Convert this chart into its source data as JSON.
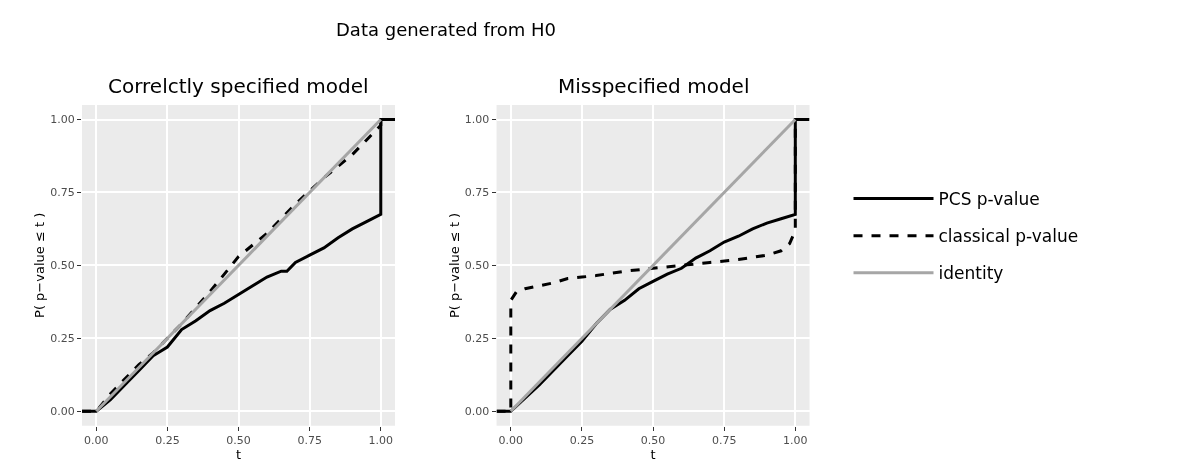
{
  "chart_data": [
    {
      "type": "line",
      "title": "Correlctly specified model",
      "annotations": [
        "Data generated from H0"
      ],
      "xlabel": "t",
      "ylabel": "P( p−value ≤ t )",
      "xlim": [
        -0.05,
        1.05
      ],
      "ylim": [
        -0.05,
        1.05
      ],
      "xticks": [
        {
          "value": 0,
          "label": "0.00"
        },
        {
          "value": 0.25,
          "label": "0.25"
        },
        {
          "value": 0.5,
          "label": "0.50"
        },
        {
          "value": 0.75,
          "label": "0.75"
        },
        {
          "value": 1,
          "label": "1.00"
        }
      ],
      "yticks": [
        {
          "value": 0,
          "label": "0.00"
        },
        {
          "value": 0.25,
          "label": "0.25"
        },
        {
          "value": 0.5,
          "label": "0.50"
        },
        {
          "value": 0.75,
          "label": "0.75"
        },
        {
          "value": 1,
          "label": "1.00"
        }
      ],
      "grid": true,
      "legend": "right",
      "marker": "none",
      "series": [
        {
          "name": "PCS p-value",
          "color": "#000000",
          "line_style": "solid",
          "x": [
            -0.05,
            0,
            0.05,
            0.1,
            0.15,
            0.2,
            0.25,
            0.3,
            0.35,
            0.4,
            0.45,
            0.5,
            0.55,
            0.6,
            0.65,
            0.67,
            0.7,
            0.75,
            0.8,
            0.85,
            0.9,
            0.95,
            1,
            1,
            1.05
          ],
          "values": [
            0,
            0,
            0.04,
            0.09,
            0.14,
            0.19,
            0.22,
            0.28,
            0.31,
            0.345,
            0.37,
            0.4,
            0.43,
            0.46,
            0.48,
            0.48,
            0.51,
            0.535,
            0.56,
            0.595,
            0.625,
            0.65,
            0.675,
            1,
            1
          ]
        },
        {
          "name": "classical p-value",
          "color": "#000000",
          "line_style": "dashed",
          "x": [
            -0.05,
            0,
            0.05,
            0.1,
            0.15,
            0.2,
            0.25,
            0.3,
            0.4,
            0.5,
            0.6,
            0.7,
            0.8,
            0.9,
            0.95,
            1,
            1,
            1.05
          ],
          "values": [
            0,
            0,
            0.06,
            0.11,
            0.16,
            0.2,
            0.25,
            0.3,
            0.41,
            0.53,
            0.61,
            0.71,
            0.8,
            0.88,
            0.93,
            0.98,
            1,
            1
          ]
        },
        {
          "name": "identity",
          "color": "#a6a6a6",
          "line_style": "solid",
          "x": [
            0,
            1
          ],
          "values": [
            0,
            1
          ]
        }
      ]
    },
    {
      "type": "line",
      "title": "Misspecified model",
      "xlabel": "t",
      "ylabel": "P( p−value ≤ t )",
      "xlim": [
        -0.05,
        1.05
      ],
      "ylim": [
        -0.05,
        1.05
      ],
      "xticks": [
        {
          "value": 0,
          "label": "0.00"
        },
        {
          "value": 0.25,
          "label": "0.25"
        },
        {
          "value": 0.5,
          "label": "0.50"
        },
        {
          "value": 0.75,
          "label": "0.75"
        },
        {
          "value": 1,
          "label": "1.00"
        }
      ],
      "yticks": [
        {
          "value": 0,
          "label": "0.00"
        },
        {
          "value": 0.25,
          "label": "0.25"
        },
        {
          "value": 0.5,
          "label": "0.50"
        },
        {
          "value": 0.75,
          "label": "0.75"
        },
        {
          "value": 1,
          "label": "1.00"
        }
      ],
      "grid": true,
      "marker": "none",
      "series": [
        {
          "color": "#000000",
          "line_style": "solid",
          "x": [
            -0.05,
            0,
            0.1,
            0.2,
            0.25,
            0.3,
            0.35,
            0.4,
            0.45,
            0.5,
            0.55,
            0.6,
            0.65,
            0.7,
            0.75,
            0.8,
            0.85,
            0.9,
            0.95,
            1,
            1,
            1.05
          ],
          "values": [
            0,
            0,
            0.09,
            0.19,
            0.24,
            0.3,
            0.35,
            0.38,
            0.42,
            0.445,
            0.47,
            0.49,
            0.525,
            0.55,
            0.58,
            0.6,
            0.625,
            0.645,
            0.66,
            0.675,
            1,
            1
          ]
        },
        {
          "color": "#000000",
          "line_style": "dashed",
          "x": [
            -0.05,
            0,
            0,
            0.02,
            0.05,
            0.1,
            0.15,
            0.2,
            0.25,
            0.3,
            0.4,
            0.5,
            0.6,
            0.65,
            0.7,
            0.8,
            0.9,
            0.95,
            0.98,
            1,
            1
          ],
          "values": [
            0,
            0,
            0.38,
            0.41,
            0.42,
            0.43,
            0.44,
            0.455,
            0.46,
            0.465,
            0.48,
            0.49,
            0.5,
            0.505,
            0.51,
            0.52,
            0.535,
            0.55,
            0.575,
            0.62,
            1
          ]
        },
        {
          "color": "#a6a6a6",
          "line_style": "solid",
          "x": [
            0,
            1
          ],
          "values": [
            0,
            1
          ]
        }
      ]
    }
  ]
}
